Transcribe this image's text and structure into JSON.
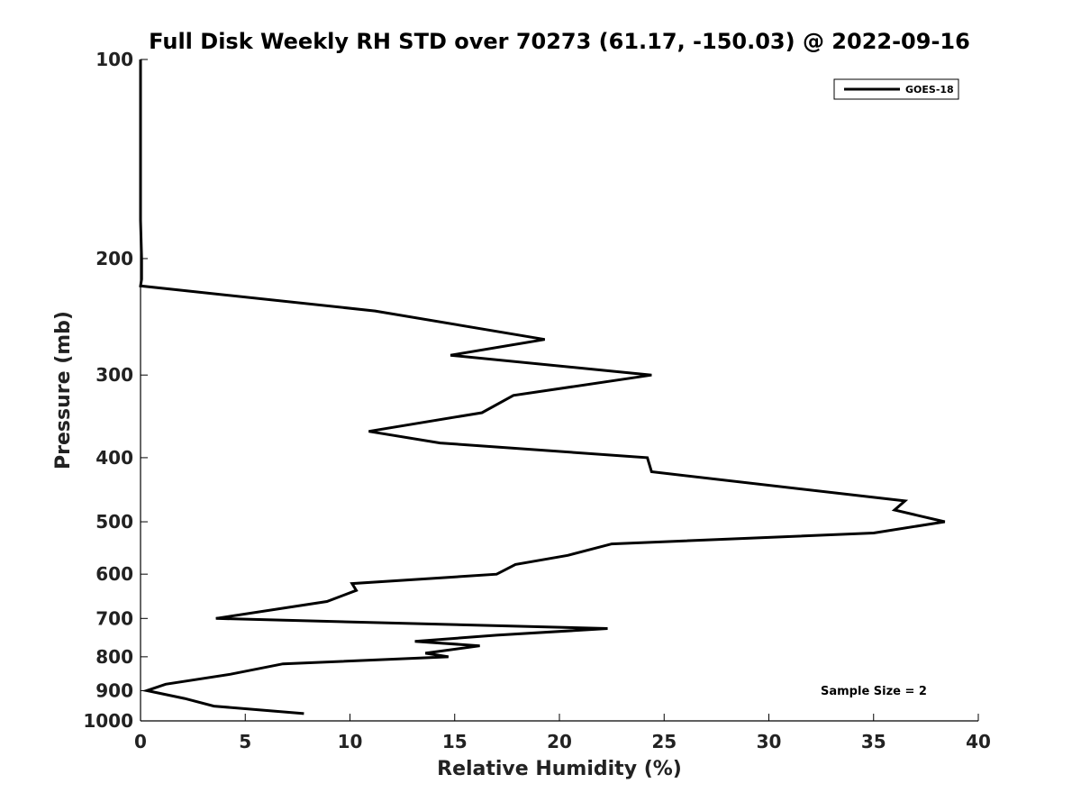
{
  "chart_data": {
    "type": "line",
    "title": "Full Disk Weekly RH STD over 70273 (61.17, -150.03) @ 2022-09-16",
    "xlabel": "Relative Humidity (%)",
    "ylabel": "Pressure (mb)",
    "xlim": [
      0,
      40
    ],
    "ylim": [
      100,
      1000
    ],
    "y_scale": "log",
    "y_reversed": true,
    "grid": false,
    "legend_position": "top-right",
    "x_ticks": [
      "0",
      "5",
      "10",
      "15",
      "20",
      "25",
      "30",
      "35",
      "40"
    ],
    "y_ticks": [
      "100",
      "200",
      "300",
      "400",
      "500",
      "600",
      "700",
      "800",
      "900",
      "1000"
    ],
    "annotation": "Sample Size = 2",
    "series": [
      {
        "name": "GOES-18",
        "color": "#000000",
        "points": [
          [
            0.0,
            100
          ],
          [
            0.0,
            125
          ],
          [
            0.0,
            150
          ],
          [
            0.0,
            175
          ],
          [
            0.05,
            200
          ],
          [
            0.05,
            215
          ],
          [
            0.0,
            220
          ],
          [
            11.2,
            240
          ],
          [
            19.3,
            265
          ],
          [
            14.8,
            280
          ],
          [
            24.4,
            300
          ],
          [
            17.8,
            322
          ],
          [
            16.3,
            342
          ],
          [
            10.9,
            365
          ],
          [
            14.3,
            380
          ],
          [
            24.2,
            400
          ],
          [
            24.4,
            420
          ],
          [
            36.5,
            465
          ],
          [
            36.0,
            480
          ],
          [
            38.4,
            500
          ],
          [
            35.0,
            520
          ],
          [
            22.5,
            540
          ],
          [
            20.4,
            562
          ],
          [
            17.9,
            580
          ],
          [
            17.0,
            600
          ],
          [
            10.1,
            620
          ],
          [
            10.3,
            635
          ],
          [
            8.9,
            660
          ],
          [
            3.6,
            700
          ],
          [
            22.3,
            725
          ],
          [
            17.0,
            742
          ],
          [
            13.1,
            758
          ],
          [
            16.2,
            770
          ],
          [
            13.6,
            790
          ],
          [
            14.7,
            800
          ],
          [
            6.8,
            820
          ],
          [
            4.3,
            850
          ],
          [
            1.2,
            880
          ],
          [
            0.3,
            900
          ],
          [
            2.1,
            925
          ],
          [
            3.5,
            950
          ],
          [
            7.8,
            975
          ]
        ]
      }
    ]
  }
}
